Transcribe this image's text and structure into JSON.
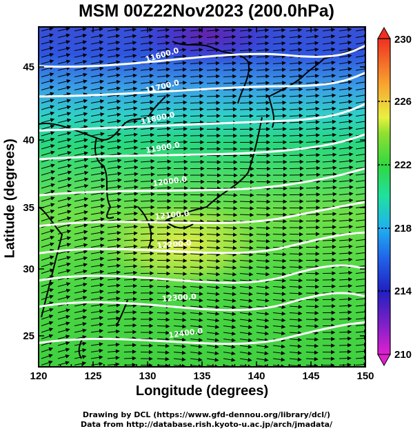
{
  "title": "MSM 00Z22Nov2023 (200.0hPa)",
  "map": {
    "xlabel": "Longitude (degrees)",
    "ylabel": "Latitude  (degrees)",
    "lon_range": [
      120,
      150
    ],
    "lat_range": [
      22.5,
      47.5
    ],
    "lon_ticks": [
      "120",
      "125",
      "130",
      "135",
      "140",
      "145",
      "150"
    ],
    "lat_ticks": [
      "25",
      "30",
      "35",
      "40",
      "45"
    ],
    "contour_labels": [
      "11600.0",
      "11700.0",
      "11800.0",
      "11900.0",
      "12000.0",
      "12100.0",
      "12200.0",
      "12300.0",
      "12400.0"
    ],
    "colorbar_labels": [
      "230",
      "226",
      "222",
      "218",
      "214",
      "210"
    ]
  },
  "credits": {
    "line1": "Drawing by DCL (https://www.gfd-dennou.org/library/dcl/)",
    "line2": "Data from http://database.rish.kyoto-u.ac.jp/arch/jmadata/"
  }
}
